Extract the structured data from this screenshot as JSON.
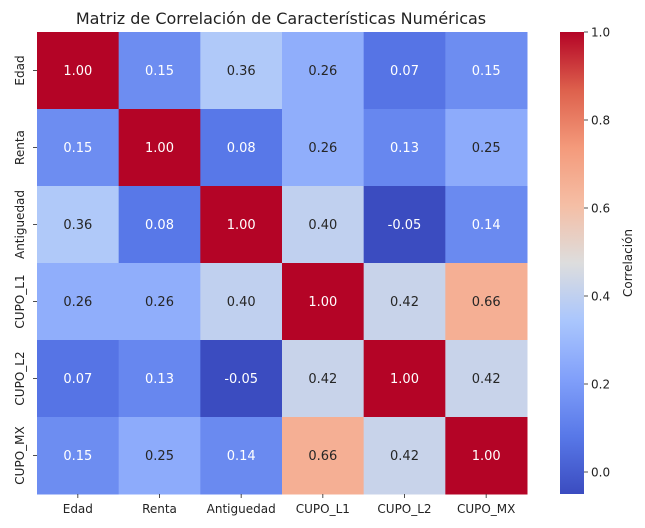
{
  "chart_data": {
    "type": "heatmap",
    "title": "Matriz de Correlación de Características Numéricas",
    "x_labels": [
      "Edad",
      "Renta",
      "Antiguedad",
      "CUPO_L1",
      "CUPO_L2",
      "CUPO_MX"
    ],
    "y_labels": [
      "Edad",
      "Renta",
      "Antiguedad",
      "CUPO_L1",
      "CUPO_L2",
      "CUPO_MX"
    ],
    "values": [
      [
        1.0,
        0.15,
        0.36,
        0.26,
        0.07,
        0.15
      ],
      [
        0.15,
        1.0,
        0.08,
        0.26,
        0.13,
        0.25
      ],
      [
        0.36,
        0.08,
        1.0,
        0.4,
        -0.05,
        0.14
      ],
      [
        0.26,
        0.26,
        0.4,
        1.0,
        0.42,
        0.66
      ],
      [
        0.07,
        0.13,
        -0.05,
        0.42,
        1.0,
        0.42
      ],
      [
        0.15,
        0.25,
        0.14,
        0.66,
        0.42,
        1.0
      ]
    ],
    "cell_labels": [
      [
        "1.00",
        "0.15",
        "0.36",
        "0.26",
        "0.07",
        "0.15"
      ],
      [
        "0.15",
        "1.00",
        "0.08",
        "0.26",
        "0.13",
        "0.25"
      ],
      [
        "0.36",
        "0.08",
        "1.00",
        "0.40",
        "-0.05",
        "0.14"
      ],
      [
        "0.26",
        "0.26",
        "0.40",
        "1.00",
        "0.42",
        "0.66"
      ],
      [
        "0.07",
        "0.13",
        "-0.05",
        "0.42",
        "1.00",
        "0.42"
      ],
      [
        "0.15",
        "0.25",
        "0.14",
        "0.66",
        "0.42",
        "1.00"
      ]
    ],
    "colormap": "coolwarm",
    "value_range": [
      -0.05,
      1.0
    ],
    "colorbar": {
      "label": "Correlación",
      "ticks": [
        0.0,
        0.2,
        0.4,
        0.6,
        0.8,
        1.0
      ],
      "tick_labels": [
        "0.0",
        "0.2",
        "0.4",
        "0.6",
        "0.8",
        "1.0"
      ]
    }
  }
}
